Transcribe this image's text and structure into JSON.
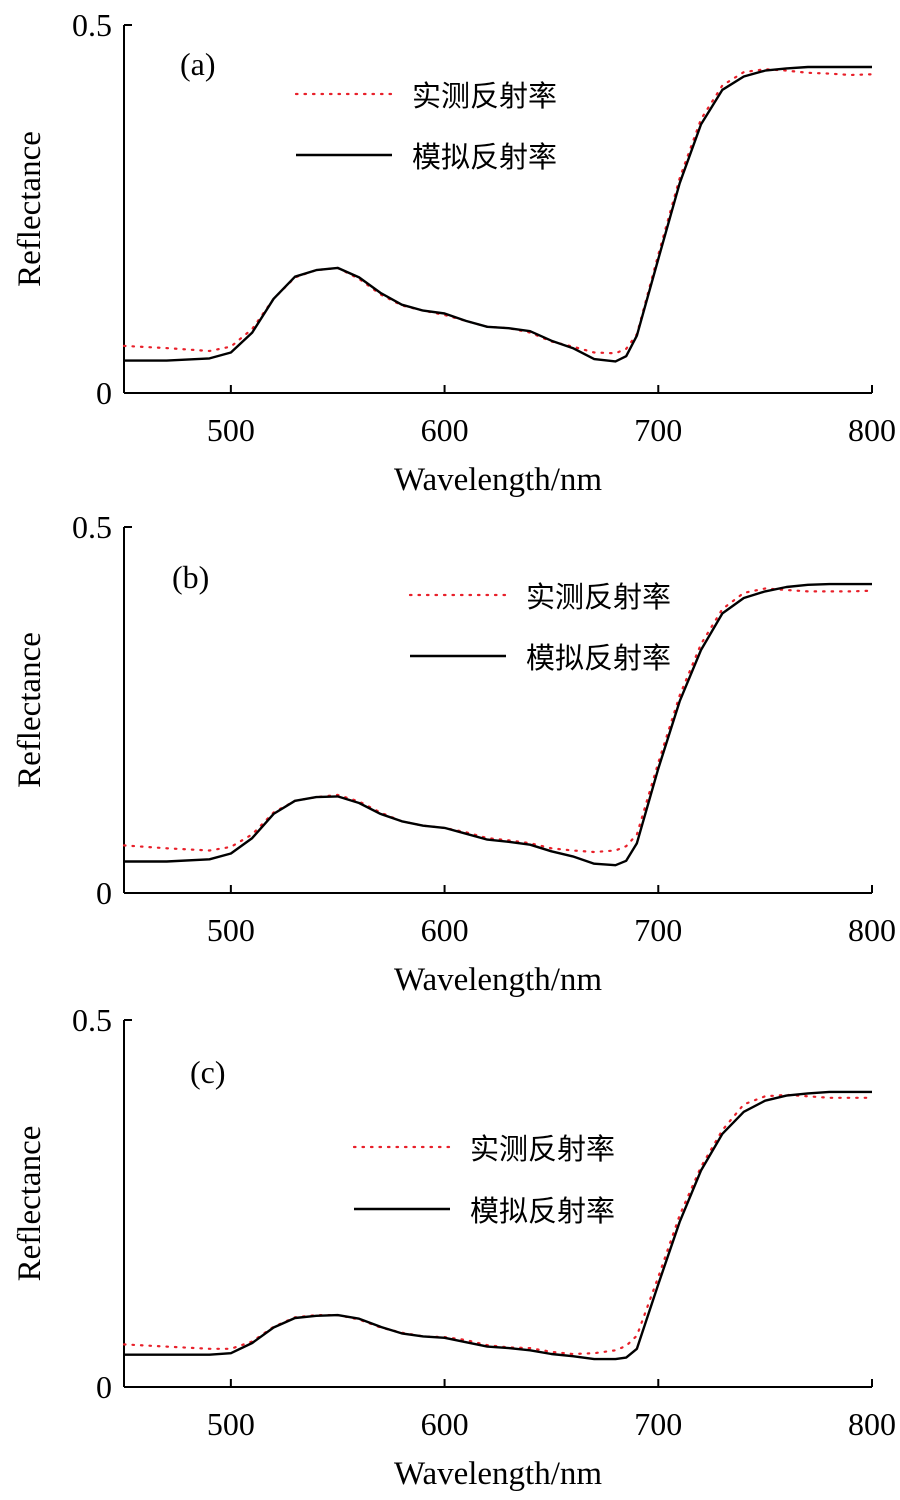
{
  "colors": {
    "measured": "#e8202a",
    "simulated": "#000000",
    "axis": "#000000"
  },
  "chart_data": [
    {
      "type": "line",
      "panel_label": "(a)",
      "xlabel": "Wavelength/nm",
      "ylabel": "Reflectance",
      "xlim": [
        450,
        800
      ],
      "ylim": [
        0,
        0.5
      ],
      "xticks": [
        500,
        600,
        700,
        800
      ],
      "yticks": [
        {
          "value": 0,
          "label": "0"
        },
        {
          "value": 0.5,
          "label": "0.5"
        }
      ],
      "grid": false,
      "legend_position": "top-left",
      "series": [
        {
          "name": "实测反射率",
          "style": "dotted",
          "color": "#e8202a",
          "x": [
            450,
            470,
            490,
            500,
            510,
            520,
            530,
            540,
            550,
            560,
            570,
            580,
            590,
            600,
            610,
            620,
            630,
            640,
            650,
            660,
            670,
            680,
            685,
            690,
            700,
            710,
            720,
            730,
            740,
            750,
            760,
            770,
            780,
            790,
            800
          ],
          "y": [
            0.064,
            0.061,
            0.057,
            0.063,
            0.087,
            0.128,
            0.157,
            0.167,
            0.17,
            0.155,
            0.134,
            0.119,
            0.112,
            0.106,
            0.098,
            0.09,
            0.088,
            0.082,
            0.07,
            0.063,
            0.055,
            0.054,
            0.06,
            0.08,
            0.188,
            0.292,
            0.372,
            0.418,
            0.436,
            0.44,
            0.438,
            0.435,
            0.434,
            0.432,
            0.433
          ]
        },
        {
          "name": "模拟反射率",
          "style": "solid",
          "color": "#000000",
          "x": [
            450,
            470,
            490,
            500,
            510,
            520,
            530,
            540,
            550,
            560,
            570,
            580,
            590,
            600,
            610,
            620,
            630,
            640,
            650,
            660,
            670,
            680,
            685,
            690,
            700,
            710,
            720,
            730,
            740,
            750,
            760,
            770,
            780,
            790,
            800
          ],
          "y": [
            0.044,
            0.044,
            0.047,
            0.055,
            0.082,
            0.128,
            0.158,
            0.167,
            0.17,
            0.157,
            0.136,
            0.12,
            0.112,
            0.108,
            0.098,
            0.09,
            0.088,
            0.084,
            0.071,
            0.061,
            0.046,
            0.043,
            0.05,
            0.078,
            0.182,
            0.285,
            0.365,
            0.412,
            0.43,
            0.438,
            0.441,
            0.443,
            0.443,
            0.443,
            0.443
          ]
        }
      ]
    },
    {
      "type": "line",
      "panel_label": "(b)",
      "xlabel": "Wavelength/nm",
      "ylabel": "Reflectance",
      "xlim": [
        450,
        800
      ],
      "ylim": [
        0,
        0.5
      ],
      "xticks": [
        500,
        600,
        700,
        800
      ],
      "yticks": [
        {
          "value": 0,
          "label": "0"
        },
        {
          "value": 0.5,
          "label": "0.5"
        }
      ],
      "grid": false,
      "legend_position": "top-center",
      "series": [
        {
          "name": "实测反射率",
          "style": "dotted",
          "color": "#e8202a",
          "x": [
            450,
            470,
            490,
            500,
            510,
            520,
            530,
            540,
            550,
            560,
            570,
            580,
            590,
            600,
            610,
            620,
            630,
            640,
            650,
            660,
            670,
            680,
            685,
            690,
            700,
            710,
            720,
            730,
            740,
            750,
            760,
            770,
            780,
            790,
            800
          ],
          "y": [
            0.065,
            0.061,
            0.058,
            0.063,
            0.08,
            0.11,
            0.126,
            0.131,
            0.134,
            0.125,
            0.11,
            0.098,
            0.092,
            0.089,
            0.083,
            0.075,
            0.072,
            0.068,
            0.061,
            0.058,
            0.056,
            0.058,
            0.064,
            0.08,
            0.178,
            0.27,
            0.34,
            0.388,
            0.41,
            0.416,
            0.414,
            0.412,
            0.412,
            0.412,
            0.413
          ]
        },
        {
          "name": "模拟反射率",
          "style": "solid",
          "color": "#000000",
          "x": [
            450,
            470,
            490,
            500,
            510,
            520,
            530,
            540,
            550,
            560,
            570,
            580,
            590,
            600,
            610,
            620,
            630,
            640,
            650,
            660,
            670,
            680,
            685,
            690,
            700,
            710,
            720,
            730,
            740,
            750,
            760,
            770,
            780,
            790,
            800
          ],
          "y": [
            0.043,
            0.043,
            0.046,
            0.054,
            0.075,
            0.108,
            0.126,
            0.131,
            0.132,
            0.123,
            0.108,
            0.098,
            0.092,
            0.089,
            0.081,
            0.073,
            0.07,
            0.066,
            0.057,
            0.05,
            0.04,
            0.038,
            0.044,
            0.068,
            0.17,
            0.262,
            0.332,
            0.382,
            0.403,
            0.412,
            0.418,
            0.421,
            0.422,
            0.422,
            0.422
          ]
        }
      ]
    },
    {
      "type": "line",
      "panel_label": "(c)",
      "xlabel": "Wavelength/nm",
      "ylabel": "Reflectance",
      "xlim": [
        450,
        800
      ],
      "ylim": [
        0,
        0.5
      ],
      "xticks": [
        500,
        600,
        700,
        800
      ],
      "yticks": [
        {
          "value": 0,
          "label": "0"
        },
        {
          "value": 0.5,
          "label": "0.5"
        }
      ],
      "grid": false,
      "legend_position": "center",
      "series": [
        {
          "name": "实测反射率",
          "style": "dotted",
          "color": "#e8202a",
          "x": [
            450,
            470,
            490,
            500,
            510,
            520,
            530,
            540,
            550,
            560,
            570,
            580,
            590,
            600,
            610,
            620,
            630,
            640,
            650,
            660,
            670,
            680,
            685,
            690,
            700,
            710,
            720,
            730,
            740,
            750,
            760,
            770,
            780,
            790,
            800
          ],
          "y": [
            0.058,
            0.055,
            0.052,
            0.052,
            0.062,
            0.082,
            0.095,
            0.098,
            0.098,
            0.092,
            0.081,
            0.074,
            0.069,
            0.068,
            0.064,
            0.057,
            0.054,
            0.053,
            0.048,
            0.045,
            0.046,
            0.05,
            0.056,
            0.07,
            0.15,
            0.234,
            0.3,
            0.35,
            0.385,
            0.396,
            0.398,
            0.396,
            0.394,
            0.394,
            0.394
          ]
        },
        {
          "name": "模拟反射率",
          "style": "solid",
          "color": "#000000",
          "x": [
            450,
            470,
            490,
            500,
            510,
            520,
            530,
            540,
            550,
            560,
            570,
            580,
            590,
            600,
            610,
            620,
            630,
            640,
            650,
            660,
            670,
            680,
            685,
            690,
            700,
            710,
            720,
            730,
            740,
            750,
            760,
            770,
            780,
            790,
            800
          ],
          "y": [
            0.044,
            0.044,
            0.044,
            0.046,
            0.06,
            0.081,
            0.094,
            0.097,
            0.098,
            0.093,
            0.082,
            0.073,
            0.069,
            0.067,
            0.061,
            0.055,
            0.053,
            0.05,
            0.045,
            0.042,
            0.038,
            0.038,
            0.04,
            0.052,
            0.14,
            0.225,
            0.295,
            0.345,
            0.375,
            0.39,
            0.397,
            0.4,
            0.402,
            0.402,
            0.402
          ]
        }
      ]
    }
  ]
}
